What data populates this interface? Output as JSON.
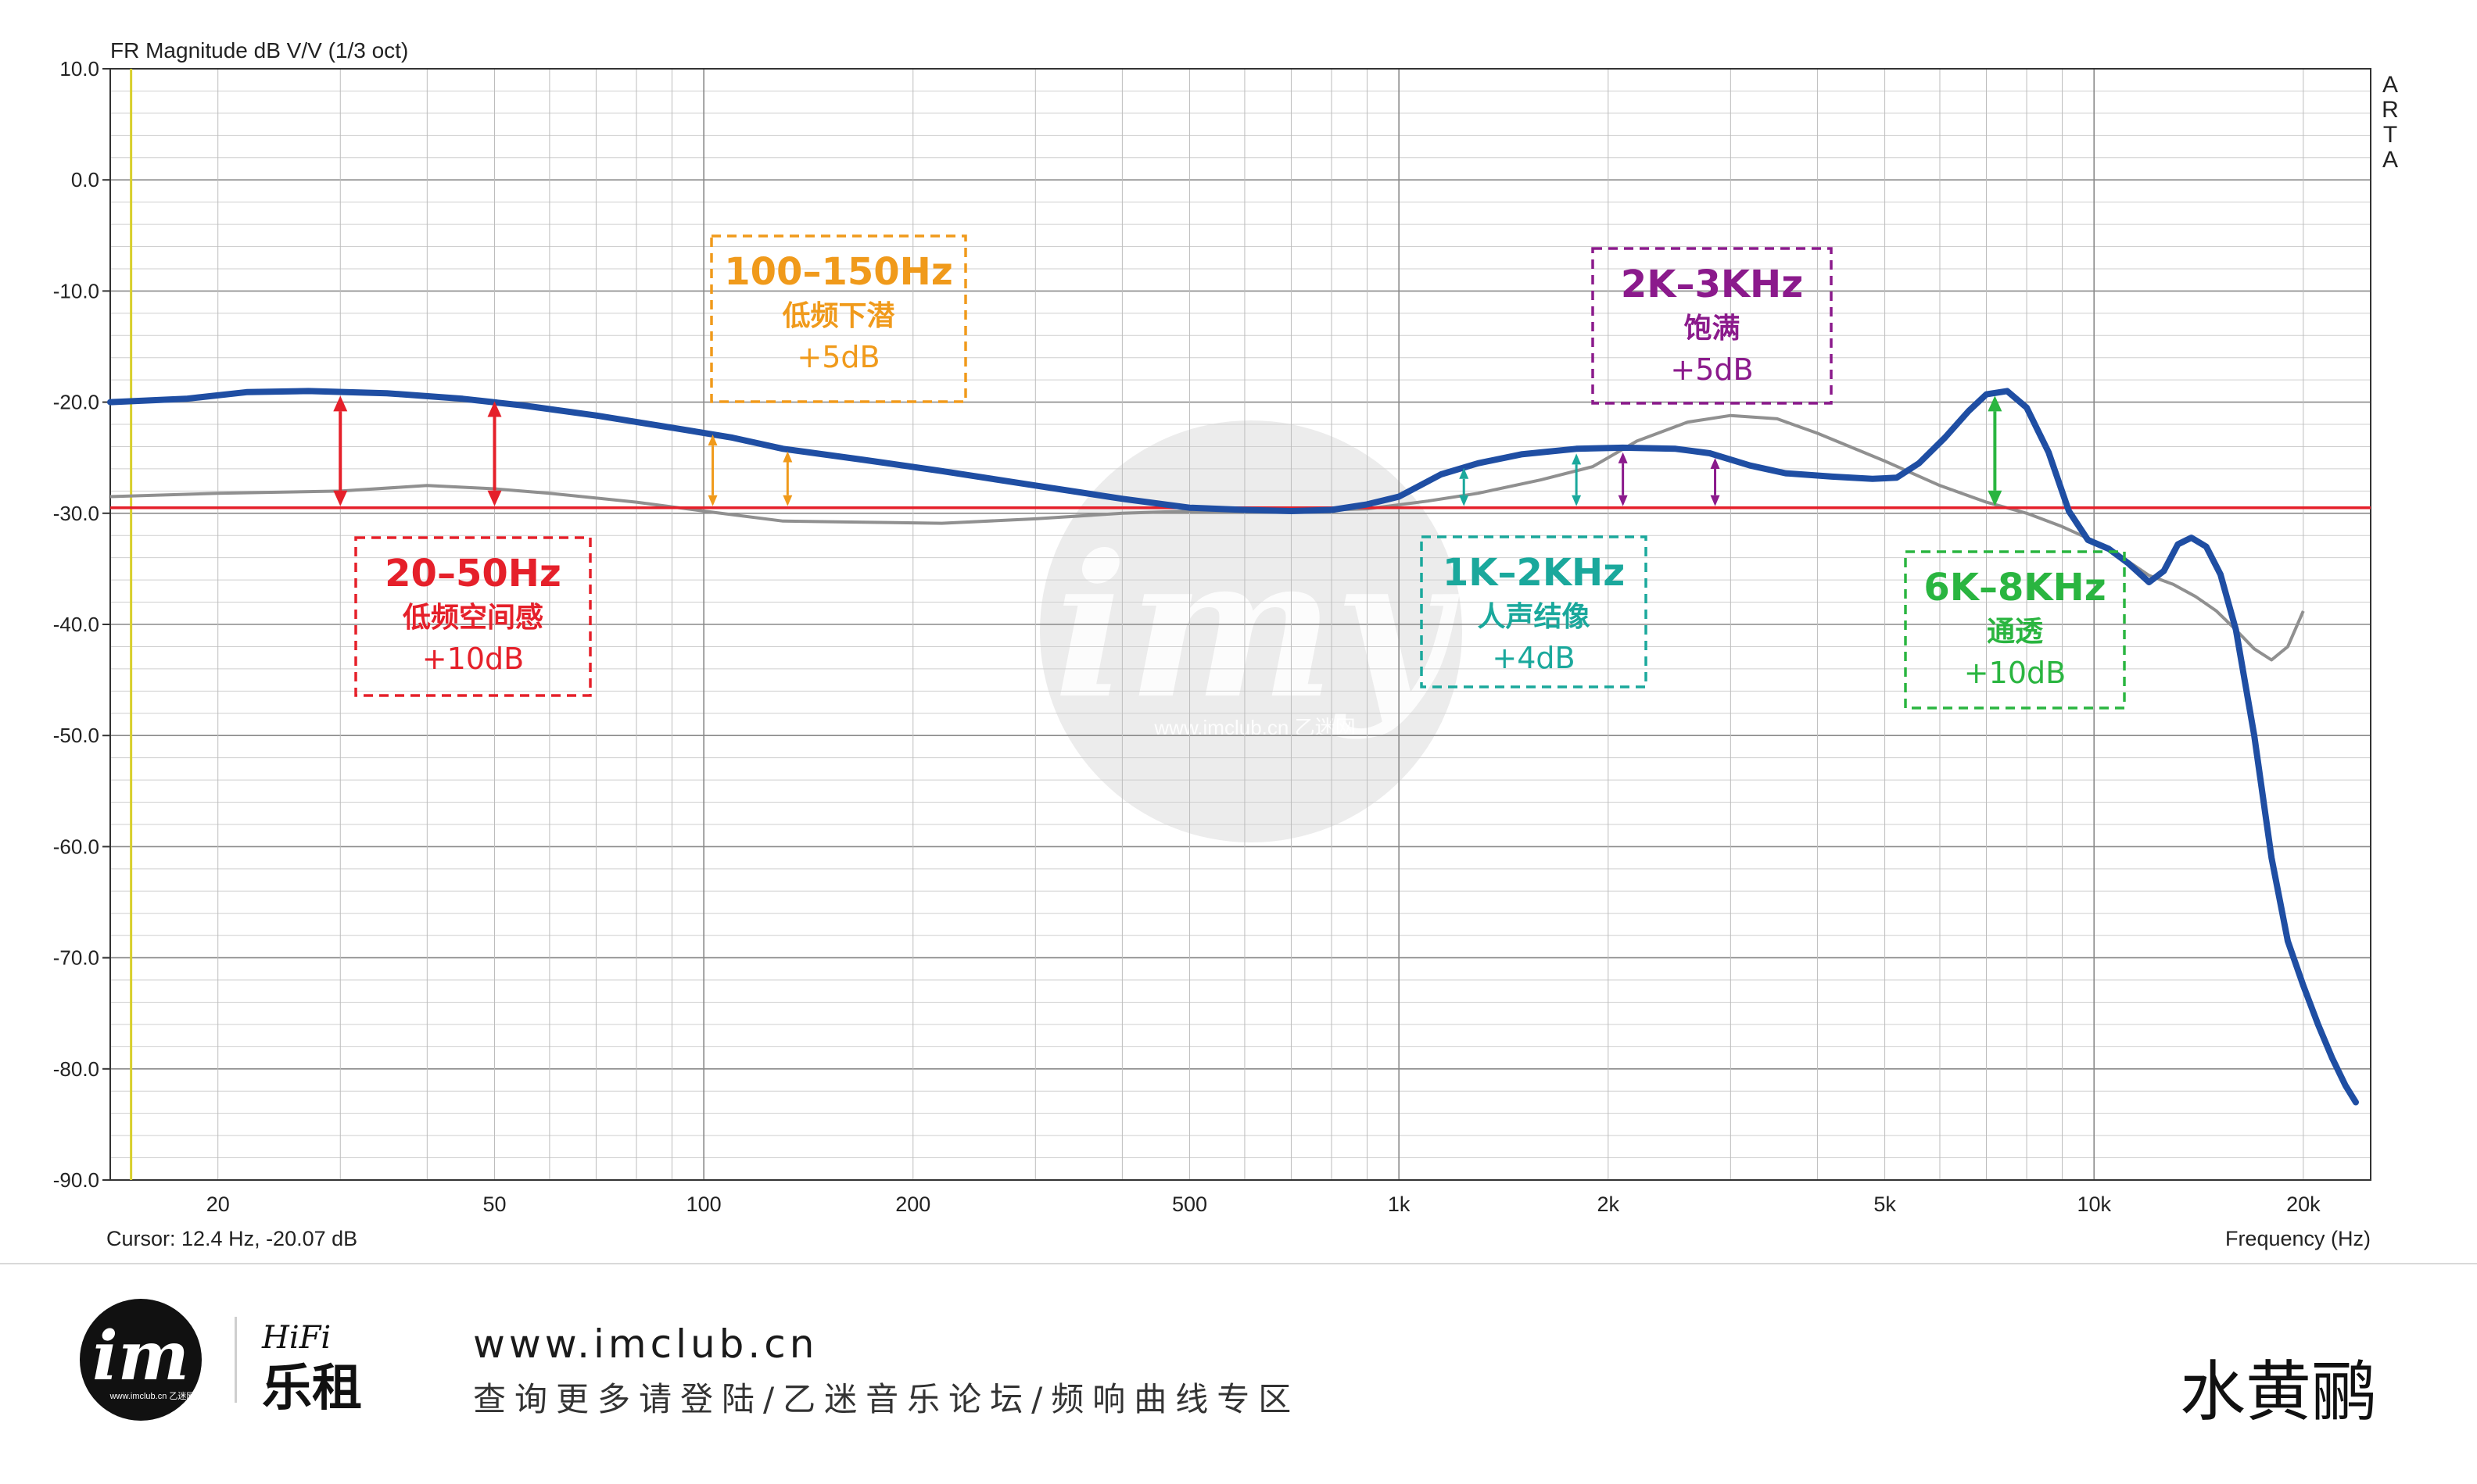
{
  "chart_data": {
    "type": "line",
    "title": "FR Magnitude dB V/V (1/3 oct)",
    "xlabel": "Frequency (Hz)",
    "ylabel": "",
    "x_scale": "log",
    "xlim": [
      14,
      25000
    ],
    "ylim": [
      -90,
      10
    ],
    "grid": true,
    "y_ticks": [
      {
        "value": 10,
        "label": "10.0"
      },
      {
        "value": 0,
        "label": "0.0"
      },
      {
        "value": -10,
        "label": "-10.0"
      },
      {
        "value": -20,
        "label": "-20.0"
      },
      {
        "value": -30,
        "label": "-30.0"
      },
      {
        "value": -40,
        "label": "-40.0"
      },
      {
        "value": -50,
        "label": "-50.0"
      },
      {
        "value": -60,
        "label": "-60.0"
      },
      {
        "value": -70,
        "label": "-70.0"
      },
      {
        "value": -80,
        "label": "-80.0"
      },
      {
        "value": -90,
        "label": "-90.0"
      }
    ],
    "x_ticks": [
      {
        "value": 20,
        "label": "20"
      },
      {
        "value": 50,
        "label": "50"
      },
      {
        "value": 100,
        "label": "100"
      },
      {
        "value": 200,
        "label": "200"
      },
      {
        "value": 500,
        "label": "500"
      },
      {
        "value": 1000,
        "label": "1k"
      },
      {
        "value": 2000,
        "label": "2k"
      },
      {
        "value": 5000,
        "label": "5k"
      },
      {
        "value": 10000,
        "label": "10k"
      },
      {
        "value": 20000,
        "label": "20k"
      }
    ],
    "cursor_text": "Cursor: 12.4 Hz, -20.07 dB",
    "side_label": [
      "A",
      "R",
      "T",
      "A"
    ],
    "reference_level_db": -29.5,
    "cursor_freq": 15,
    "series": [
      {
        "color": "#1f4ea3",
        "x": [
          14,
          18,
          22,
          27,
          35,
          45,
          55,
          70,
          90,
          110,
          130,
          170,
          220,
          300,
          400,
          500,
          600,
          700,
          800,
          900,
          1000,
          1150,
          1300,
          1500,
          1800,
          2100,
          2500,
          2800,
          3200,
          3600,
          4200,
          4800,
          5200,
          5600,
          6100,
          6600,
          7000,
          7500,
          8000,
          8600,
          9200,
          9800,
          10500,
          11200,
          12000,
          12600,
          13200,
          13800,
          14500,
          15200,
          16000,
          17000,
          18000,
          19000,
          20000,
          21000,
          22000,
          23000,
          23800
        ],
        "y": [
          -20,
          -19.7,
          -19.1,
          -19,
          -19.2,
          -19.7,
          -20.3,
          -21.2,
          -22.3,
          -23.2,
          -24.2,
          -25.2,
          -26.2,
          -27.5,
          -28.7,
          -29.5,
          -29.7,
          -29.8,
          -29.7,
          -29.2,
          -28.5,
          -26.5,
          -25.5,
          -24.7,
          -24.2,
          -24.1,
          -24.2,
          -24.6,
          -25.7,
          -26.4,
          -26.7,
          -26.9,
          -26.8,
          -25.5,
          -23.2,
          -20.8,
          -19.3,
          -19,
          -20.5,
          -24.5,
          -29.8,
          -32.4,
          -33.2,
          -34.5,
          -36.2,
          -35.2,
          -32.8,
          -32.2,
          -33,
          -35.5,
          -40.5,
          -50,
          -61,
          -68.5,
          -72.5,
          -76,
          -79,
          -81.5,
          -83
        ]
      },
      {
        "color": "#909090",
        "x": [
          14,
          20,
          30,
          40,
          50,
          60,
          80,
          100,
          130,
          170,
          220,
          300,
          400,
          500,
          700,
          900,
          1100,
          1300,
          1600,
          1900,
          2200,
          2600,
          3000,
          3500,
          4000,
          5000,
          6000,
          7000,
          8000,
          9000,
          10000,
          11000,
          12000,
          13000,
          14000,
          15000,
          16000,
          17000,
          18000,
          19000,
          20000
        ],
        "y": [
          -28.5,
          -28.2,
          -28,
          -27.5,
          -27.8,
          -28.2,
          -29,
          -29.8,
          -30.7,
          -30.8,
          -30.9,
          -30.5,
          -30,
          -29.8,
          -29.8,
          -29.6,
          -28.9,
          -28.2,
          -27,
          -25.8,
          -23.5,
          -21.8,
          -21.2,
          -21.5,
          -22.8,
          -25.3,
          -27.5,
          -29,
          -30,
          -31.2,
          -32.5,
          -34,
          -35.6,
          -36.4,
          -37.5,
          -38.8,
          -40.5,
          -42.2,
          -43.2,
          -42,
          -38.8
        ]
      }
    ],
    "annotations": [
      {
        "title": "20–50Hz",
        "subtitle": "低频空间感",
        "value": "+10dB",
        "color": "#e5202a",
        "arrow_freqs": [
          30,
          50
        ],
        "arrow_tops_db": [
          -19,
          -19.5
        ]
      },
      {
        "title": "100–150Hz",
        "subtitle": "低频下潜",
        "value": "+5dB",
        "color": "#f09a1b",
        "arrow_freqs": [
          103,
          132
        ],
        "arrow_tops_db": [
          -22.5,
          -24
        ]
      },
      {
        "title": "1K–2KHz",
        "subtitle": "人声结像",
        "value": "+4dB",
        "color": "#1aa89c",
        "arrow_freqs": [
          1240,
          1800
        ],
        "arrow_tops_db": [
          -25.5,
          -24.2
        ]
      },
      {
        "title": "2K–3KHz",
        "subtitle": "饱满",
        "value": "+5dB",
        "color": "#8b1a8c",
        "arrow_freqs": [
          2100,
          2850
        ],
        "arrow_tops_db": [
          -24.1,
          -24.6
        ]
      },
      {
        "title": "6K–8KHz",
        "subtitle": "通透",
        "value": "+10dB",
        "color": "#2ab540",
        "arrow_freqs": [
          7200
        ],
        "arrow_tops_db": [
          -19
        ]
      }
    ]
  },
  "footer": {
    "logo_text": "im",
    "logo_small": "www.imclub.cn 乙迷网",
    "brand_script": "HiFi",
    "brand_name": "乐租",
    "url": "www.imclub.cn",
    "tagline": "查询更多请登陆/乙迷音乐论坛/频响曲线专区",
    "product_name": "水黄鹂"
  },
  "watermark": {
    "text": "imy",
    "small": "www.imclub.cn 乙迷网"
  }
}
